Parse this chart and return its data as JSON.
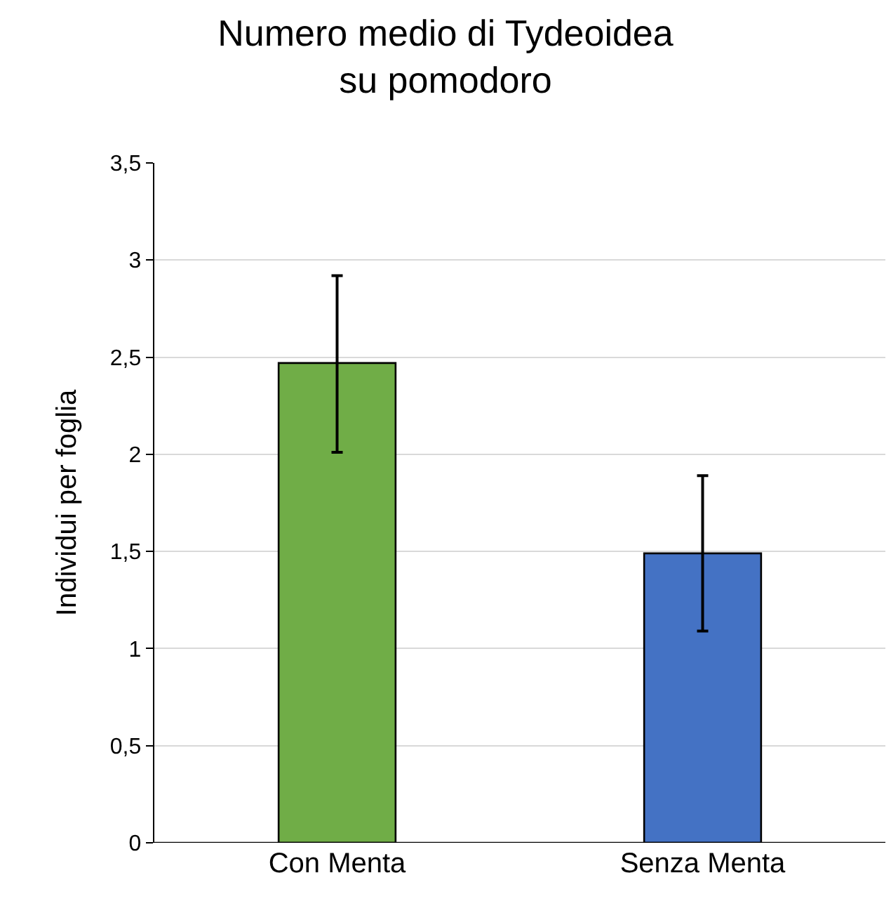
{
  "chart_data": {
    "type": "bar",
    "title": "Numero medio di Tydeoidea\nsu pomodoro",
    "ylabel": "Individui per foglia",
    "categories": [
      "Con Menta",
      "Senza Menta"
    ],
    "values": [
      2.47,
      1.49
    ],
    "colors": [
      "#70ad47",
      "#4472c4"
    ],
    "errors": [
      [
        2.01,
        2.92
      ],
      [
        1.09,
        1.89
      ]
    ],
    "ylim": [
      0,
      3.5
    ],
    "yticks": [
      0,
      {
        "value": 0.5,
        "label": "0,5"
      },
      1,
      {
        "value": 1.5,
        "label": "1,5"
      },
      2,
      {
        "value": 2.5,
        "label": "2,5"
      },
      3,
      {
        "value": 3.5,
        "label": "3,5"
      }
    ],
    "grid": "y"
  }
}
